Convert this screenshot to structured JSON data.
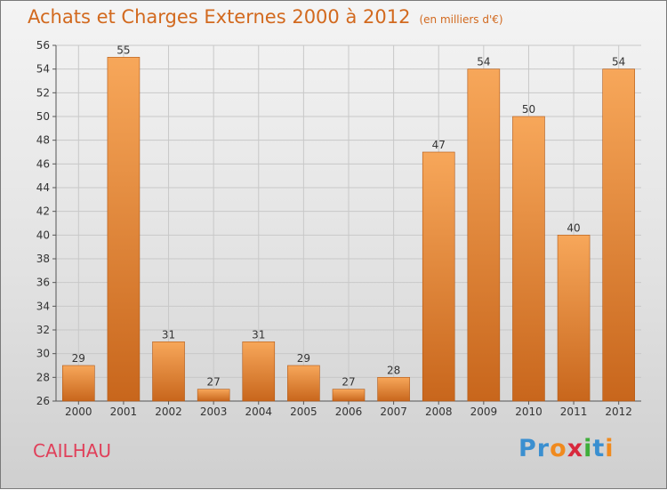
{
  "header": {
    "title": "Achats et Charges Externes 2000 à 2012",
    "subtitle": "(en milliers d'€)"
  },
  "footer": {
    "place": "CAILHAU",
    "logo_letters": [
      {
        "ch": "P",
        "color": "#3a8fd0"
      },
      {
        "ch": "r",
        "color": "#3a8fd0"
      },
      {
        "ch": "o",
        "color": "#f08a1e"
      },
      {
        "ch": "x",
        "color": "#d8283c"
      },
      {
        "ch": "i",
        "color": "#3fae3a"
      },
      {
        "ch": "t",
        "color": "#3a8fd0"
      },
      {
        "ch": "i",
        "color": "#f08a1e"
      }
    ]
  },
  "chart_data": {
    "type": "bar",
    "title": "Achats et Charges Externes 2000 à 2012",
    "subtitle": "(en milliers d'€)",
    "xlabel": "",
    "ylabel": "",
    "categories": [
      "2000",
      "2001",
      "2002",
      "2003",
      "2004",
      "2005",
      "2006",
      "2007",
      "2008",
      "2009",
      "2010",
      "2011",
      "2012"
    ],
    "values": [
      29,
      55,
      31,
      27,
      31,
      29,
      27,
      28,
      47,
      54,
      50,
      40,
      54
    ],
    "ylim": [
      26,
      56
    ],
    "yticks": [
      26,
      28,
      30,
      32,
      34,
      36,
      38,
      40,
      42,
      44,
      46,
      48,
      50,
      52,
      54,
      56
    ],
    "grid": true,
    "colors": {
      "bar_light": "#f7a75a",
      "bar_dark": "#c8661c",
      "bar_edge": "#b05816",
      "grid": "#c8c8c8",
      "axis_text": "#333333"
    }
  }
}
